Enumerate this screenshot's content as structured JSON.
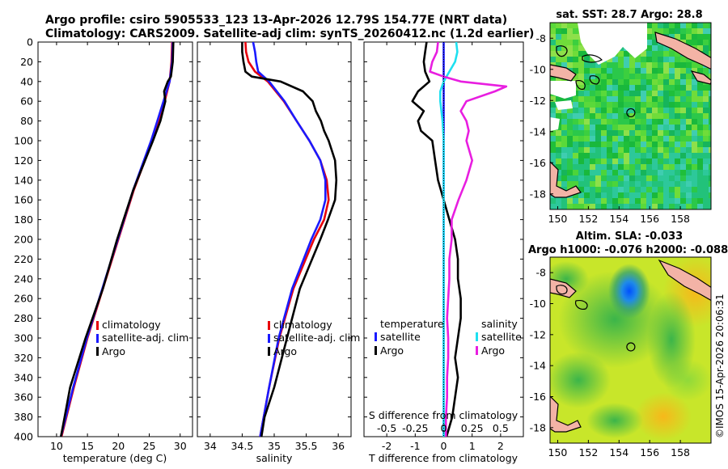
{
  "header": {
    "line1": "Argo profile: csiro 5905533_123 13-Apr-2026 12.79S 154.77E (NRT data)",
    "line2": "Climatology: CARS2009. Satellite-adj clim: synTS_20260412.nc (1.2d earlier)"
  },
  "colors": {
    "climatology": "#e8000b",
    "satellite": "#1a1aff",
    "argo": "#000000",
    "sat_salinity": "#1ee0f0",
    "argo_salinity": "#e81ee0"
  },
  "chart_data": [
    {
      "type": "line",
      "name": "temperature-profile",
      "xlabel": "temperature (deg C)",
      "xlim": [
        7,
        32
      ],
      "xticks": [
        10,
        15,
        20,
        25,
        30
      ],
      "xticklabels": [
        "10",
        "15",
        "20",
        "25",
        "30"
      ],
      "ylim": [
        0,
        400
      ],
      "yticks": [
        0,
        20,
        40,
        60,
        80,
        100,
        120,
        140,
        160,
        180,
        200,
        220,
        240,
        260,
        280,
        300,
        320,
        340,
        360,
        380,
        400
      ],
      "yticklabels": [
        "0",
        "20",
        "40",
        "60",
        "80",
        "100",
        "120",
        "140",
        "160",
        "180",
        "200",
        "220",
        "240",
        "260",
        "280",
        "300",
        "320",
        "340",
        "360",
        "380",
        "400"
      ],
      "legend": [
        "climatology",
        "satellite-adj. clim",
        "Argo"
      ],
      "series": [
        {
          "name": "climatology",
          "depth": [
            0,
            20,
            40,
            60,
            80,
            100,
            150,
            200,
            250,
            300,
            350,
            400
          ],
          "values": [
            28.7,
            28.6,
            28.3,
            27.5,
            26.5,
            25.5,
            22.5,
            20.0,
            17.5,
            15.0,
            12.8,
            10.8
          ]
        },
        {
          "name": "satellite-adj. clim",
          "depth": [
            0,
            20,
            40,
            60,
            80,
            100,
            150,
            200,
            250,
            300,
            350,
            400
          ],
          "values": [
            28.8,
            28.7,
            28.3,
            27.3,
            26.3,
            25.3,
            22.4,
            19.9,
            17.4,
            14.9,
            12.7,
            10.7
          ]
        },
        {
          "name": "Argo",
          "depth": [
            0,
            20,
            35,
            40,
            50,
            60,
            80,
            100,
            150,
            200,
            250,
            300,
            350,
            380,
            400
          ],
          "values": [
            28.9,
            28.8,
            28.5,
            28.0,
            27.4,
            27.6,
            26.8,
            25.6,
            22.4,
            19.8,
            17.5,
            14.7,
            12.2,
            11.3,
            10.7
          ]
        }
      ]
    },
    {
      "type": "line",
      "name": "salinity-profile",
      "xlabel": "salinity",
      "xlim": [
        33.8,
        36.2
      ],
      "xticks": [
        34,
        34.5,
        35,
        35.5,
        36
      ],
      "xticklabels": [
        "34",
        "34.5",
        "35",
        "35.5",
        "36"
      ],
      "ylim": [
        0,
        400
      ],
      "legend": [
        "climatology",
        "satellite-adj. clim",
        "Argo"
      ],
      "series": [
        {
          "name": "climatology",
          "depth": [
            0,
            10,
            20,
            30,
            40,
            60,
            80,
            100,
            120,
            140,
            160,
            180,
            200,
            250,
            300,
            350,
            400
          ],
          "values": [
            34.55,
            34.56,
            34.6,
            34.7,
            34.9,
            35.15,
            35.35,
            35.55,
            35.72,
            35.82,
            35.85,
            35.78,
            35.62,
            35.3,
            35.08,
            34.92,
            34.78
          ]
        },
        {
          "name": "satellite-adj. clim",
          "depth": [
            0,
            10,
            20,
            30,
            40,
            60,
            80,
            100,
            120,
            140,
            160,
            180,
            200,
            250,
            300,
            350,
            400
          ],
          "values": [
            34.67,
            34.7,
            34.72,
            34.75,
            34.92,
            35.16,
            35.35,
            35.55,
            35.72,
            35.8,
            35.8,
            35.72,
            35.58,
            35.28,
            35.07,
            34.92,
            34.78
          ]
        },
        {
          "name": "Argo",
          "depth": [
            0,
            10,
            20,
            30,
            35,
            40,
            50,
            60,
            70,
            80,
            90,
            100,
            120,
            140,
            160,
            180,
            200,
            250,
            300,
            350,
            380,
            400
          ],
          "values": [
            34.5,
            34.5,
            34.52,
            34.55,
            34.65,
            35.1,
            35.45,
            35.6,
            35.65,
            35.73,
            35.78,
            35.85,
            35.95,
            35.97,
            35.95,
            35.84,
            35.72,
            35.4,
            35.2,
            35.0,
            34.85,
            34.8
          ]
        }
      ]
    },
    {
      "type": "line",
      "name": "difference-profile",
      "xlabel": "T difference from climatology",
      "xlim": [
        -2.8,
        2.8
      ],
      "xticks": [
        -2,
        -1,
        0,
        1,
        2
      ],
      "xticklabels": [
        "-2",
        "-1",
        "0",
        "1",
        "2"
      ],
      "top_axis_label": "S difference from climatology",
      "top_ticklabels": [
        "-0.5",
        "-0.25",
        "0",
        "0.25",
        "0.5"
      ],
      "top_scale": 4,
      "ylim": [
        0,
        400
      ],
      "legend_temperature": {
        "title": "temperature",
        "items": [
          "satellite",
          "Argo"
        ]
      },
      "legend_salinity": {
        "title": "salinity",
        "items": [
          "satellite",
          "Argo"
        ]
      },
      "series": [
        {
          "name": "temperature satellite",
          "depth": [
            0,
            40,
            80,
            120,
            160,
            200,
            250,
            300,
            350,
            400
          ],
          "values": [
            0.0,
            0.0,
            0.0,
            0.0,
            0.0,
            0.0,
            0.0,
            0.0,
            0.0,
            0.0
          ]
        },
        {
          "name": "temperature Argo",
          "depth": [
            0,
            10,
            20,
            30,
            40,
            50,
            60,
            70,
            80,
            90,
            100,
            120,
            140,
            160,
            180,
            200,
            220,
            240,
            260,
            280,
            300,
            320,
            340,
            360,
            380,
            400
          ],
          "values": [
            -0.6,
            -0.65,
            -0.7,
            -0.65,
            -0.5,
            -0.9,
            -1.1,
            -0.7,
            -0.9,
            -0.8,
            -0.4,
            -0.3,
            -0.2,
            0.0,
            0.2,
            0.4,
            0.5,
            0.5,
            0.6,
            0.6,
            0.5,
            0.4,
            0.5,
            0.4,
            0.3,
            0.1
          ]
        },
        {
          "name": "salinity satellite",
          "depth": [
            0,
            10,
            20,
            30,
            40,
            50,
            60,
            80,
            100,
            150,
            200,
            300,
            400
          ],
          "values": [
            0.11,
            0.12,
            0.1,
            0.05,
            0.0,
            -0.03,
            -0.03,
            -0.01,
            0.0,
            0.0,
            0.0,
            0.0,
            0.0
          ]
        },
        {
          "name": "salinity Argo",
          "depth": [
            0,
            10,
            20,
            30,
            35,
            40,
            45,
            50,
            60,
            70,
            80,
            90,
            100,
            120,
            140,
            160,
            180,
            200,
            220,
            240,
            260,
            280,
            300,
            320,
            340,
            360,
            380,
            400
          ],
          "values": [
            -0.05,
            -0.06,
            -0.1,
            -0.12,
            0.0,
            0.15,
            0.55,
            0.45,
            0.2,
            0.15,
            0.2,
            0.22,
            0.2,
            0.25,
            0.2,
            0.13,
            0.07,
            0.07,
            0.05,
            0.05,
            0.04,
            0.03,
            0.04,
            0.04,
            0.03,
            0.03,
            0.02,
            0.02
          ]
        }
      ]
    },
    {
      "type": "heatmap",
      "name": "sst-map",
      "title": "sat. SST: 28.7 Argo: 28.8",
      "xlim": [
        149.5,
        160
      ],
      "ylim": [
        -19,
        -7
      ],
      "xticklabels": [
        "150",
        "152",
        "154",
        "156",
        "158"
      ],
      "yticklabels": [
        "-8",
        "-10",
        "-12",
        "-14",
        "-16",
        "-18"
      ],
      "argo_position": [
        154.77,
        -12.79
      ]
    },
    {
      "type": "heatmap",
      "name": "sla-map",
      "title_line1": "Altim. SLA: -0.033",
      "title_line2": "Argo h1000: -0.076 h2000: -0.088",
      "xlim": [
        149.5,
        160
      ],
      "ylim": [
        -19,
        -7
      ],
      "xticklabels": [
        "150",
        "152",
        "154",
        "156",
        "158"
      ],
      "yticklabels": [
        "-8",
        "-10",
        "-12",
        "-14",
        "-16",
        "-18"
      ],
      "argo_position": [
        154.77,
        -12.79
      ]
    }
  ],
  "credit": "©IMOS 15-Apr-2026 20:06:31"
}
